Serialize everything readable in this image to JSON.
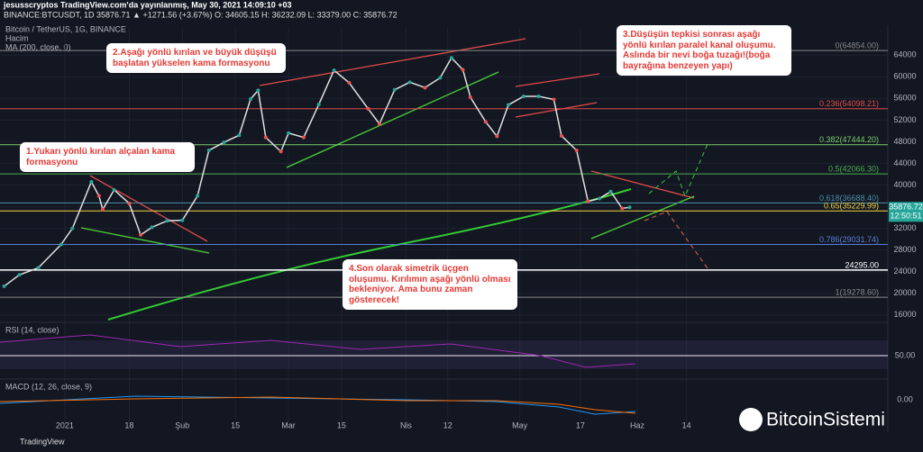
{
  "header": {
    "author": "jesusscryptos TradingView.com'da yayınlanmış, May 30, 2021 14:09:10 +03",
    "quote": "BINANCE:BTCUSDT, 1D 35876.71 ▲ +1271.56 (+3.67%) O: 34605.15 H: 36232.09 L: 33379.00 C: 35876.72"
  },
  "chart_data": {
    "type": "line",
    "title": "Bitcoin / TetherUS, 1G, BINANCE",
    "indicators": [
      "Hacim",
      "MA (200, close, 0)"
    ],
    "x": [
      -16,
      -12,
      -7,
      -1,
      2,
      7,
      9,
      10,
      13,
      17,
      20,
      23,
      27,
      31,
      35,
      38,
      42,
      46,
      49,
      51,
      53,
      57,
      59,
      63,
      67,
      71,
      75,
      80,
      83,
      87,
      91,
      95,
      99,
      102,
      105,
      107,
      111,
      114,
      117,
      121,
      125,
      129,
      131,
      135,
      138,
      141,
      144,
      147,
      149
    ],
    "series": [
      {
        "name": "BTCUSDT",
        "color": "#e0e0e0",
        "values": [
          21300,
          23400,
          24700,
          29000,
          32000,
          40600,
          38000,
          35500,
          39100,
          36600,
          30800,
          32200,
          33400,
          33500,
          38000,
          46400,
          47900,
          49200,
          55900,
          57500,
          48800,
          46200,
          49600,
          48800,
          54900,
          61200,
          58900,
          54100,
          51300,
          57600,
          59000,
          58000,
          59800,
          63500,
          61300,
          56200,
          51700,
          49000,
          54800,
          56400,
          56400,
          55800,
          49100,
          46400,
          37000,
          37500,
          38800,
          35700,
          35876.72
        ]
      }
    ],
    "xlim": [
      -17.1,
      217.1
    ],
    "ylim": [
      14800,
      69200
    ],
    "xticks": [
      {
        "value": 0,
        "label": "2021"
      },
      {
        "value": 17,
        "label": "18"
      },
      {
        "value": 31,
        "label": "Şub"
      },
      {
        "value": 45,
        "label": "15"
      },
      {
        "value": 59,
        "label": "Mar"
      },
      {
        "value": 73,
        "label": "15"
      },
      {
        "value": 90,
        "label": "Nis"
      },
      {
        "value": 101,
        "label": "12"
      },
      {
        "value": 120,
        "label": "May"
      },
      {
        "value": 136,
        "label": "17"
      },
      {
        "value": 151,
        "label": "Haz"
      },
      {
        "value": 164,
        "label": "14"
      }
    ],
    "yticks": [
      16000,
      20000,
      24000,
      28000,
      32000,
      36000,
      40000,
      44000,
      48000,
      52000,
      56000,
      60000,
      64000
    ],
    "levels": [
      {
        "value": 64854,
        "label": "0(64854.00)",
        "color": "#888"
      },
      {
        "value": 54098.21,
        "label": "0.236(54098.21)",
        "color": "#e04a4a"
      },
      {
        "value": 47444.2,
        "label": "0.382(47444.20)",
        "color": "#7ccf6a"
      },
      {
        "value": 42066.3,
        "label": "0.5(42066.30)",
        "color": "#4caf50"
      },
      {
        "value": 36688.4,
        "label": "0.618(36688.40)",
        "color": "#4a8fa8"
      },
      {
        "value": 35229.99,
        "label": "0.65(35229.99)",
        "color": "#f5d442"
      },
      {
        "value": 29031.74,
        "label": "0.786(29031.74)",
        "color": "#5a7fd6"
      },
      {
        "value": 24295,
        "label": "24295.00",
        "color": "#ffffff"
      },
      {
        "value": 19278.6,
        "label": "1(19278.60)",
        "color": "#888"
      }
    ],
    "last_price": {
      "value": 35876.72,
      "label": "35876.72",
      "timer": "12:50:51"
    },
    "annotations": [
      "1.Yukarı yönlü kırılan alçalan kama formasyonu",
      "2.Aşağı yönlü kırılan ve büyük düşüşü başlatan yükselen kama formasyonu",
      "3.Düşüşün tepkisi sonrası aşağı yönlü kırılan paralel kanal oluşumu. Aslında bir nevi boğa tuzağı!(boğa bayrağına benzeyen yapı)",
      "4.Son olarak simetrik üçgen oluşumu. Kırılımın aşağı yönlü olması bekleniyor. Ama bunu zaman gösterecek!"
    ],
    "rsi": {
      "title": "RSI (14, close)",
      "level": "50.00"
    },
    "macd": {
      "title": "MACD (12, 26, close, 9)",
      "level": "0.00"
    }
  },
  "footer": {
    "brand": "TradingView",
    "logo": "BitcoinSistemi"
  }
}
